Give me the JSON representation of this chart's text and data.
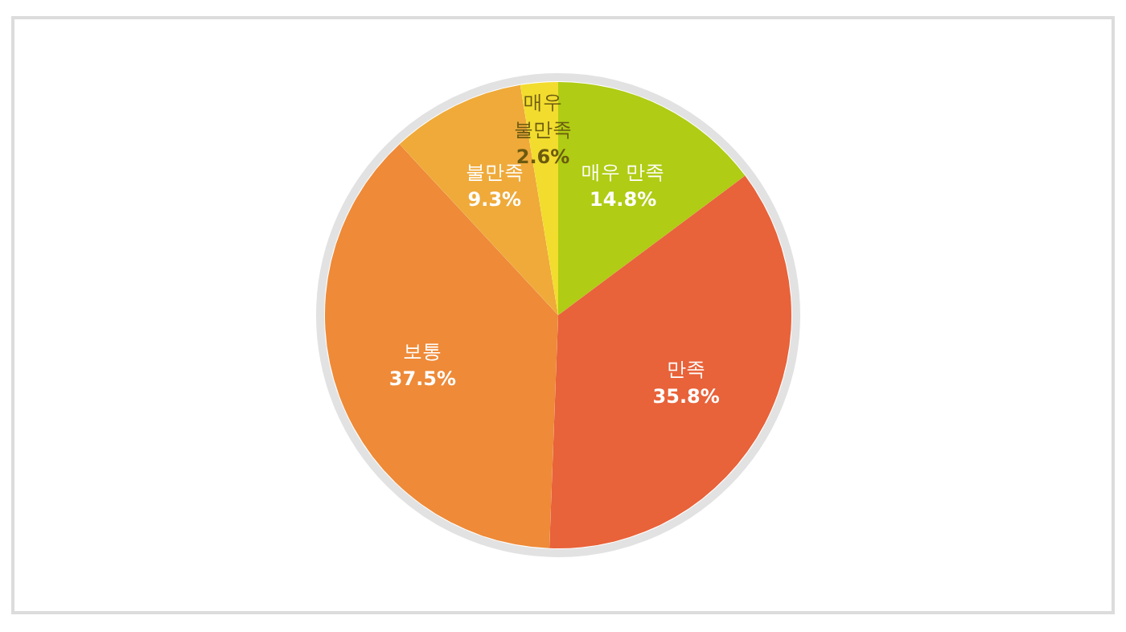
{
  "chart_data": {
    "type": "pie",
    "categories": [
      "매우 만족",
      "만족",
      "보통",
      "불만족",
      "매우 불만족"
    ],
    "values": [
      14.8,
      35.8,
      37.5,
      9.3,
      2.6
    ],
    "value_labels": [
      "14.8%",
      "35.8%",
      "37.5%",
      "9.3%",
      "2.6%"
    ],
    "colors": [
      "#b0cc14",
      "#e8623a",
      "#ee8a38",
      "#efaa3a",
      "#f2dc2e"
    ]
  }
}
